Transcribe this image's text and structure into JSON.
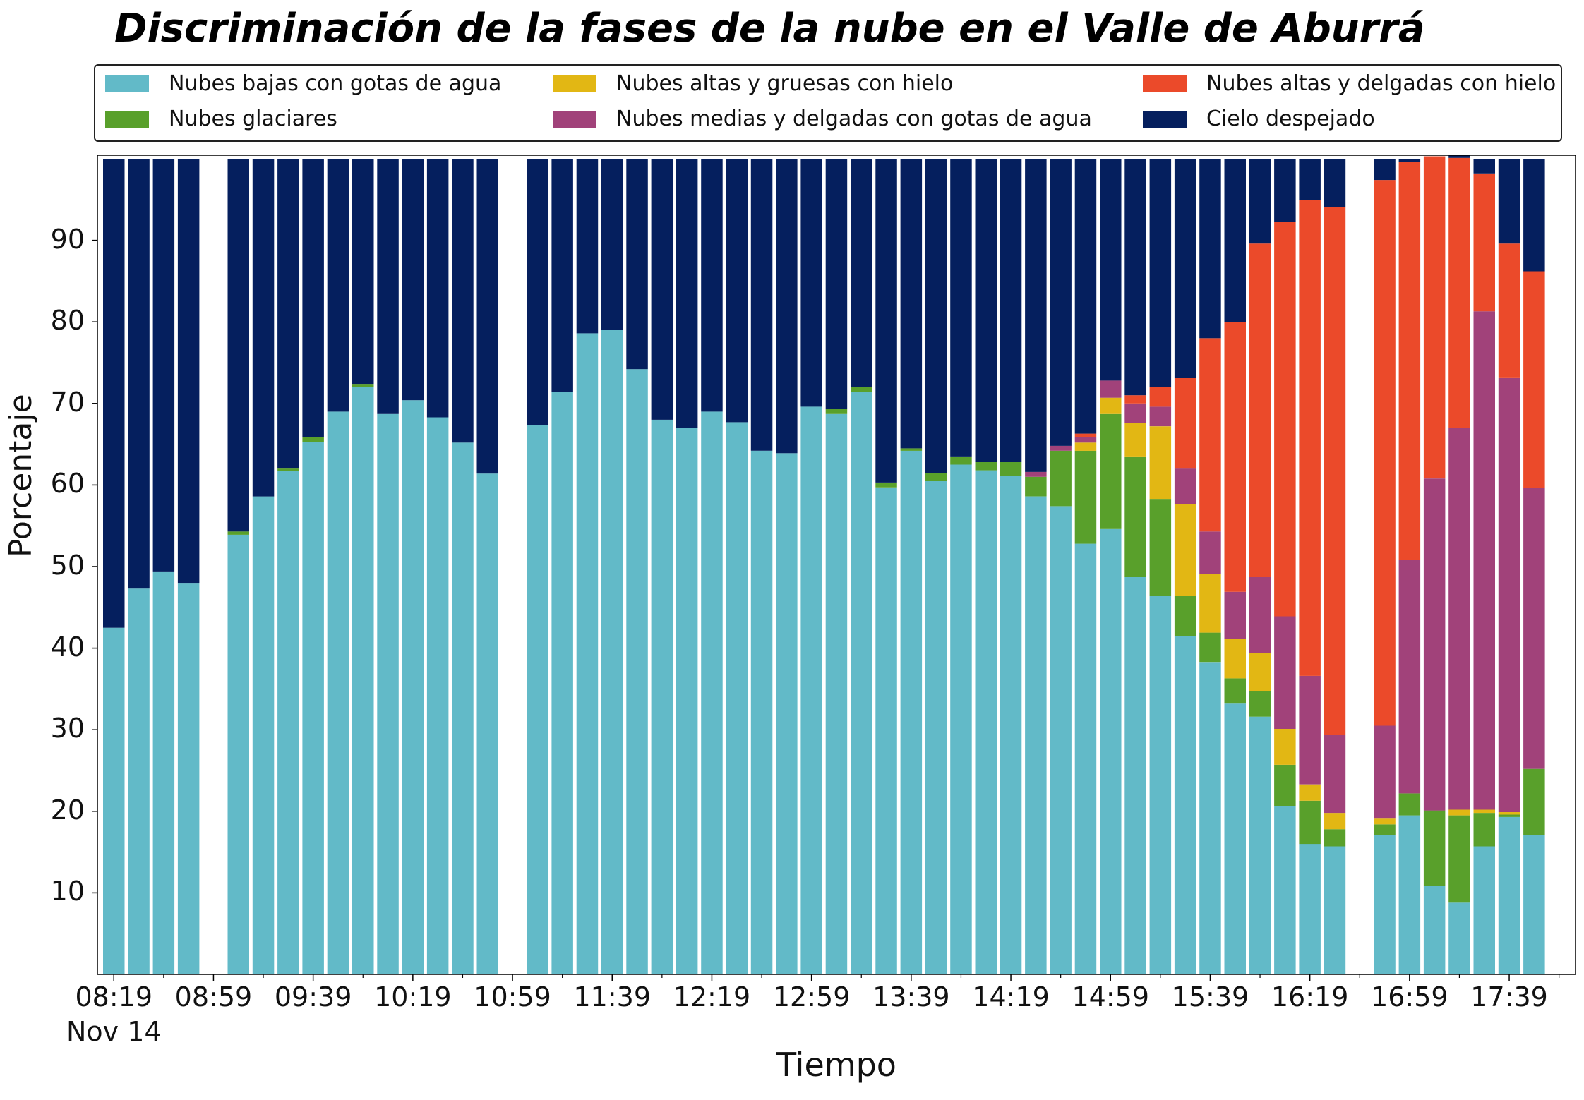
{
  "chart_data": {
    "type": "bar",
    "stacked": true,
    "title": "Discriminación de la fases de la nube en el Valle de Aburrá",
    "xlabel": "Tiempo",
    "ylabel": "Porcentaje",
    "date_label": "Nov 14",
    "ylim": [
      0,
      100
    ],
    "yticks": [
      10,
      20,
      30,
      40,
      50,
      60,
      70,
      80,
      90
    ],
    "xtick_labels": [
      "08:19",
      "08:59",
      "09:39",
      "10:19",
      "10:59",
      "11:39",
      "12:19",
      "12:59",
      "13:39",
      "14:19",
      "14:59",
      "15:39",
      "16:19",
      "16:59",
      "17:39"
    ],
    "xtick_slots": [
      0,
      4,
      8,
      12,
      16,
      20,
      24,
      28,
      32,
      36,
      40,
      44,
      48,
      52,
      56
    ],
    "minor_tick_slots": [
      2,
      6,
      10,
      14,
      18,
      22,
      26,
      30,
      34,
      38,
      42,
      46,
      50,
      54,
      58
    ],
    "legend_position": "top",
    "grid": false,
    "series": [
      {
        "name": "Nubes bajas con gotas de agua",
        "color": "#62BAC8"
      },
      {
        "name": "Nubes glaciares",
        "color": "#59A02B"
      },
      {
        "name": "Nubes altas y gruesas con hielo",
        "color": "#E2B714"
      },
      {
        "name": "Nubes medias y delgadas con gotas de agua",
        "color": "#A1427A"
      },
      {
        "name": "Nubes altas y delgadas con hielo",
        "color": "#EB4A2A"
      },
      {
        "name": "Cielo despejado",
        "color": "#051F5E"
      }
    ],
    "bars": [
      {
        "slot": 0,
        "values": [
          42.5,
          0,
          0,
          0,
          0,
          57.5
        ]
      },
      {
        "slot": 1,
        "values": [
          47.3,
          0,
          0,
          0,
          0,
          52.7
        ]
      },
      {
        "slot": 2,
        "values": [
          49.4,
          0,
          0,
          0,
          0,
          50.6
        ]
      },
      {
        "slot": 3,
        "values": [
          48.0,
          0,
          0,
          0,
          0,
          52.0
        ]
      },
      {
        "slot": 5,
        "values": [
          53.9,
          0.4,
          0,
          0,
          0,
          45.7
        ]
      },
      {
        "slot": 6,
        "values": [
          58.6,
          0,
          0,
          0,
          0,
          41.4
        ]
      },
      {
        "slot": 7,
        "values": [
          61.7,
          0.4,
          0,
          0,
          0,
          37.9
        ]
      },
      {
        "slot": 8,
        "values": [
          65.3,
          0.6,
          0,
          0,
          0,
          34.1
        ]
      },
      {
        "slot": 9,
        "values": [
          69.0,
          0,
          0,
          0,
          0,
          31.0
        ]
      },
      {
        "slot": 10,
        "values": [
          72.0,
          0.4,
          0,
          0,
          0,
          27.6
        ]
      },
      {
        "slot": 11,
        "values": [
          68.7,
          0,
          0,
          0,
          0,
          31.3
        ]
      },
      {
        "slot": 12,
        "values": [
          70.4,
          0,
          0,
          0,
          0,
          29.6
        ]
      },
      {
        "slot": 13,
        "values": [
          68.3,
          0,
          0,
          0,
          0,
          31.7
        ]
      },
      {
        "slot": 14,
        "values": [
          65.2,
          0,
          0,
          0,
          0,
          34.8
        ]
      },
      {
        "slot": 15,
        "values": [
          61.4,
          0,
          0,
          0,
          0,
          38.6
        ]
      },
      {
        "slot": 17,
        "values": [
          67.3,
          0,
          0,
          0,
          0,
          32.7
        ]
      },
      {
        "slot": 18,
        "values": [
          71.4,
          0,
          0,
          0,
          0,
          28.6
        ]
      },
      {
        "slot": 19,
        "values": [
          78.6,
          0,
          0,
          0,
          0,
          21.4
        ]
      },
      {
        "slot": 20,
        "values": [
          79.0,
          0,
          0,
          0,
          0,
          21.0
        ]
      },
      {
        "slot": 21,
        "values": [
          74.2,
          0,
          0,
          0,
          0,
          25.8
        ]
      },
      {
        "slot": 22,
        "values": [
          68.0,
          0,
          0,
          0,
          0,
          32.0
        ]
      },
      {
        "slot": 23,
        "values": [
          67.0,
          0,
          0,
          0,
          0,
          33.0
        ]
      },
      {
        "slot": 24,
        "values": [
          69.0,
          0,
          0,
          0,
          0,
          31.0
        ]
      },
      {
        "slot": 25,
        "values": [
          67.7,
          0,
          0,
          0,
          0,
          32.3
        ]
      },
      {
        "slot": 26,
        "values": [
          64.2,
          0,
          0,
          0,
          0,
          35.8
        ]
      },
      {
        "slot": 27,
        "values": [
          63.9,
          0,
          0,
          0,
          0,
          36.1
        ]
      },
      {
        "slot": 28,
        "values": [
          69.6,
          0,
          0,
          0,
          0,
          30.4
        ]
      },
      {
        "slot": 29,
        "values": [
          68.7,
          0.6,
          0,
          0,
          0,
          30.7
        ]
      },
      {
        "slot": 30,
        "values": [
          71.4,
          0.6,
          0,
          0,
          0,
          28.0
        ]
      },
      {
        "slot": 31,
        "values": [
          59.7,
          0.6,
          0,
          0,
          0,
          39.7
        ]
      },
      {
        "slot": 32,
        "values": [
          64.2,
          0.3,
          0,
          0,
          0,
          35.5
        ]
      },
      {
        "slot": 33,
        "values": [
          60.5,
          1.0,
          0,
          0,
          0,
          38.5
        ]
      },
      {
        "slot": 34,
        "values": [
          62.5,
          1.0,
          0,
          0,
          0,
          36.5
        ]
      },
      {
        "slot": 35,
        "values": [
          61.8,
          1.0,
          0,
          0,
          0,
          37.2
        ]
      },
      {
        "slot": 36,
        "values": [
          61.1,
          1.7,
          0,
          0,
          0,
          37.2
        ]
      },
      {
        "slot": 37,
        "values": [
          58.6,
          2.4,
          0,
          0.6,
          0,
          38.4
        ]
      },
      {
        "slot": 38,
        "values": [
          57.4,
          6.8,
          0,
          0.6,
          0,
          35.2
        ]
      },
      {
        "slot": 39,
        "values": [
          52.8,
          11.4,
          1.0,
          0.7,
          0.4,
          33.7
        ]
      },
      {
        "slot": 40,
        "values": [
          54.6,
          14.1,
          2.0,
          2.1,
          0,
          27.2
        ]
      },
      {
        "slot": 41,
        "values": [
          48.7,
          14.8,
          4.1,
          2.4,
          1.0,
          29.0
        ]
      },
      {
        "slot": 42,
        "values": [
          46.4,
          11.9,
          8.9,
          2.4,
          2.4,
          28.0
        ]
      },
      {
        "slot": 43,
        "values": [
          41.5,
          4.9,
          11.3,
          4.4,
          11.0,
          26.9
        ]
      },
      {
        "slot": 44,
        "values": [
          38.3,
          3.6,
          7.2,
          5.2,
          23.7,
          22.0
        ]
      },
      {
        "slot": 45,
        "values": [
          33.2,
          3.1,
          4.8,
          5.8,
          33.1,
          20.0
        ]
      },
      {
        "slot": 46,
        "values": [
          31.6,
          3.1,
          4.7,
          9.3,
          40.9,
          10.4
        ]
      },
      {
        "slot": 47,
        "values": [
          20.6,
          5.1,
          4.4,
          13.8,
          48.4,
          7.7
        ]
      },
      {
        "slot": 48,
        "values": [
          16.0,
          5.3,
          2.0,
          13.3,
          58.3,
          5.1
        ]
      },
      {
        "slot": 49,
        "values": [
          15.7,
          2.1,
          2.0,
          9.6,
          64.7,
          5.9
        ]
      },
      {
        "slot": 51,
        "values": [
          17.1,
          1.3,
          0.7,
          11.4,
          66.9,
          2.6
        ]
      },
      {
        "slot": 52,
        "values": [
          19.5,
          2.7,
          0,
          28.6,
          48.8,
          0.4
        ]
      },
      {
        "slot": 53,
        "values": [
          10.9,
          9.2,
          0,
          40.7,
          39.5,
          0
        ]
      },
      {
        "slot": 54,
        "values": [
          8.8,
          10.7,
          0.7,
          46.8,
          33.1,
          0.4
        ]
      },
      {
        "slot": 55,
        "values": [
          15.7,
          4.1,
          0.4,
          61.1,
          16.9,
          1.8
        ]
      },
      {
        "slot": 56,
        "values": [
          19.3,
          0.3,
          0.3,
          53.2,
          16.5,
          10.4
        ]
      },
      {
        "slot": 57,
        "values": [
          17.1,
          8.1,
          0,
          34.4,
          26.6,
          13.8
        ]
      }
    ]
  }
}
